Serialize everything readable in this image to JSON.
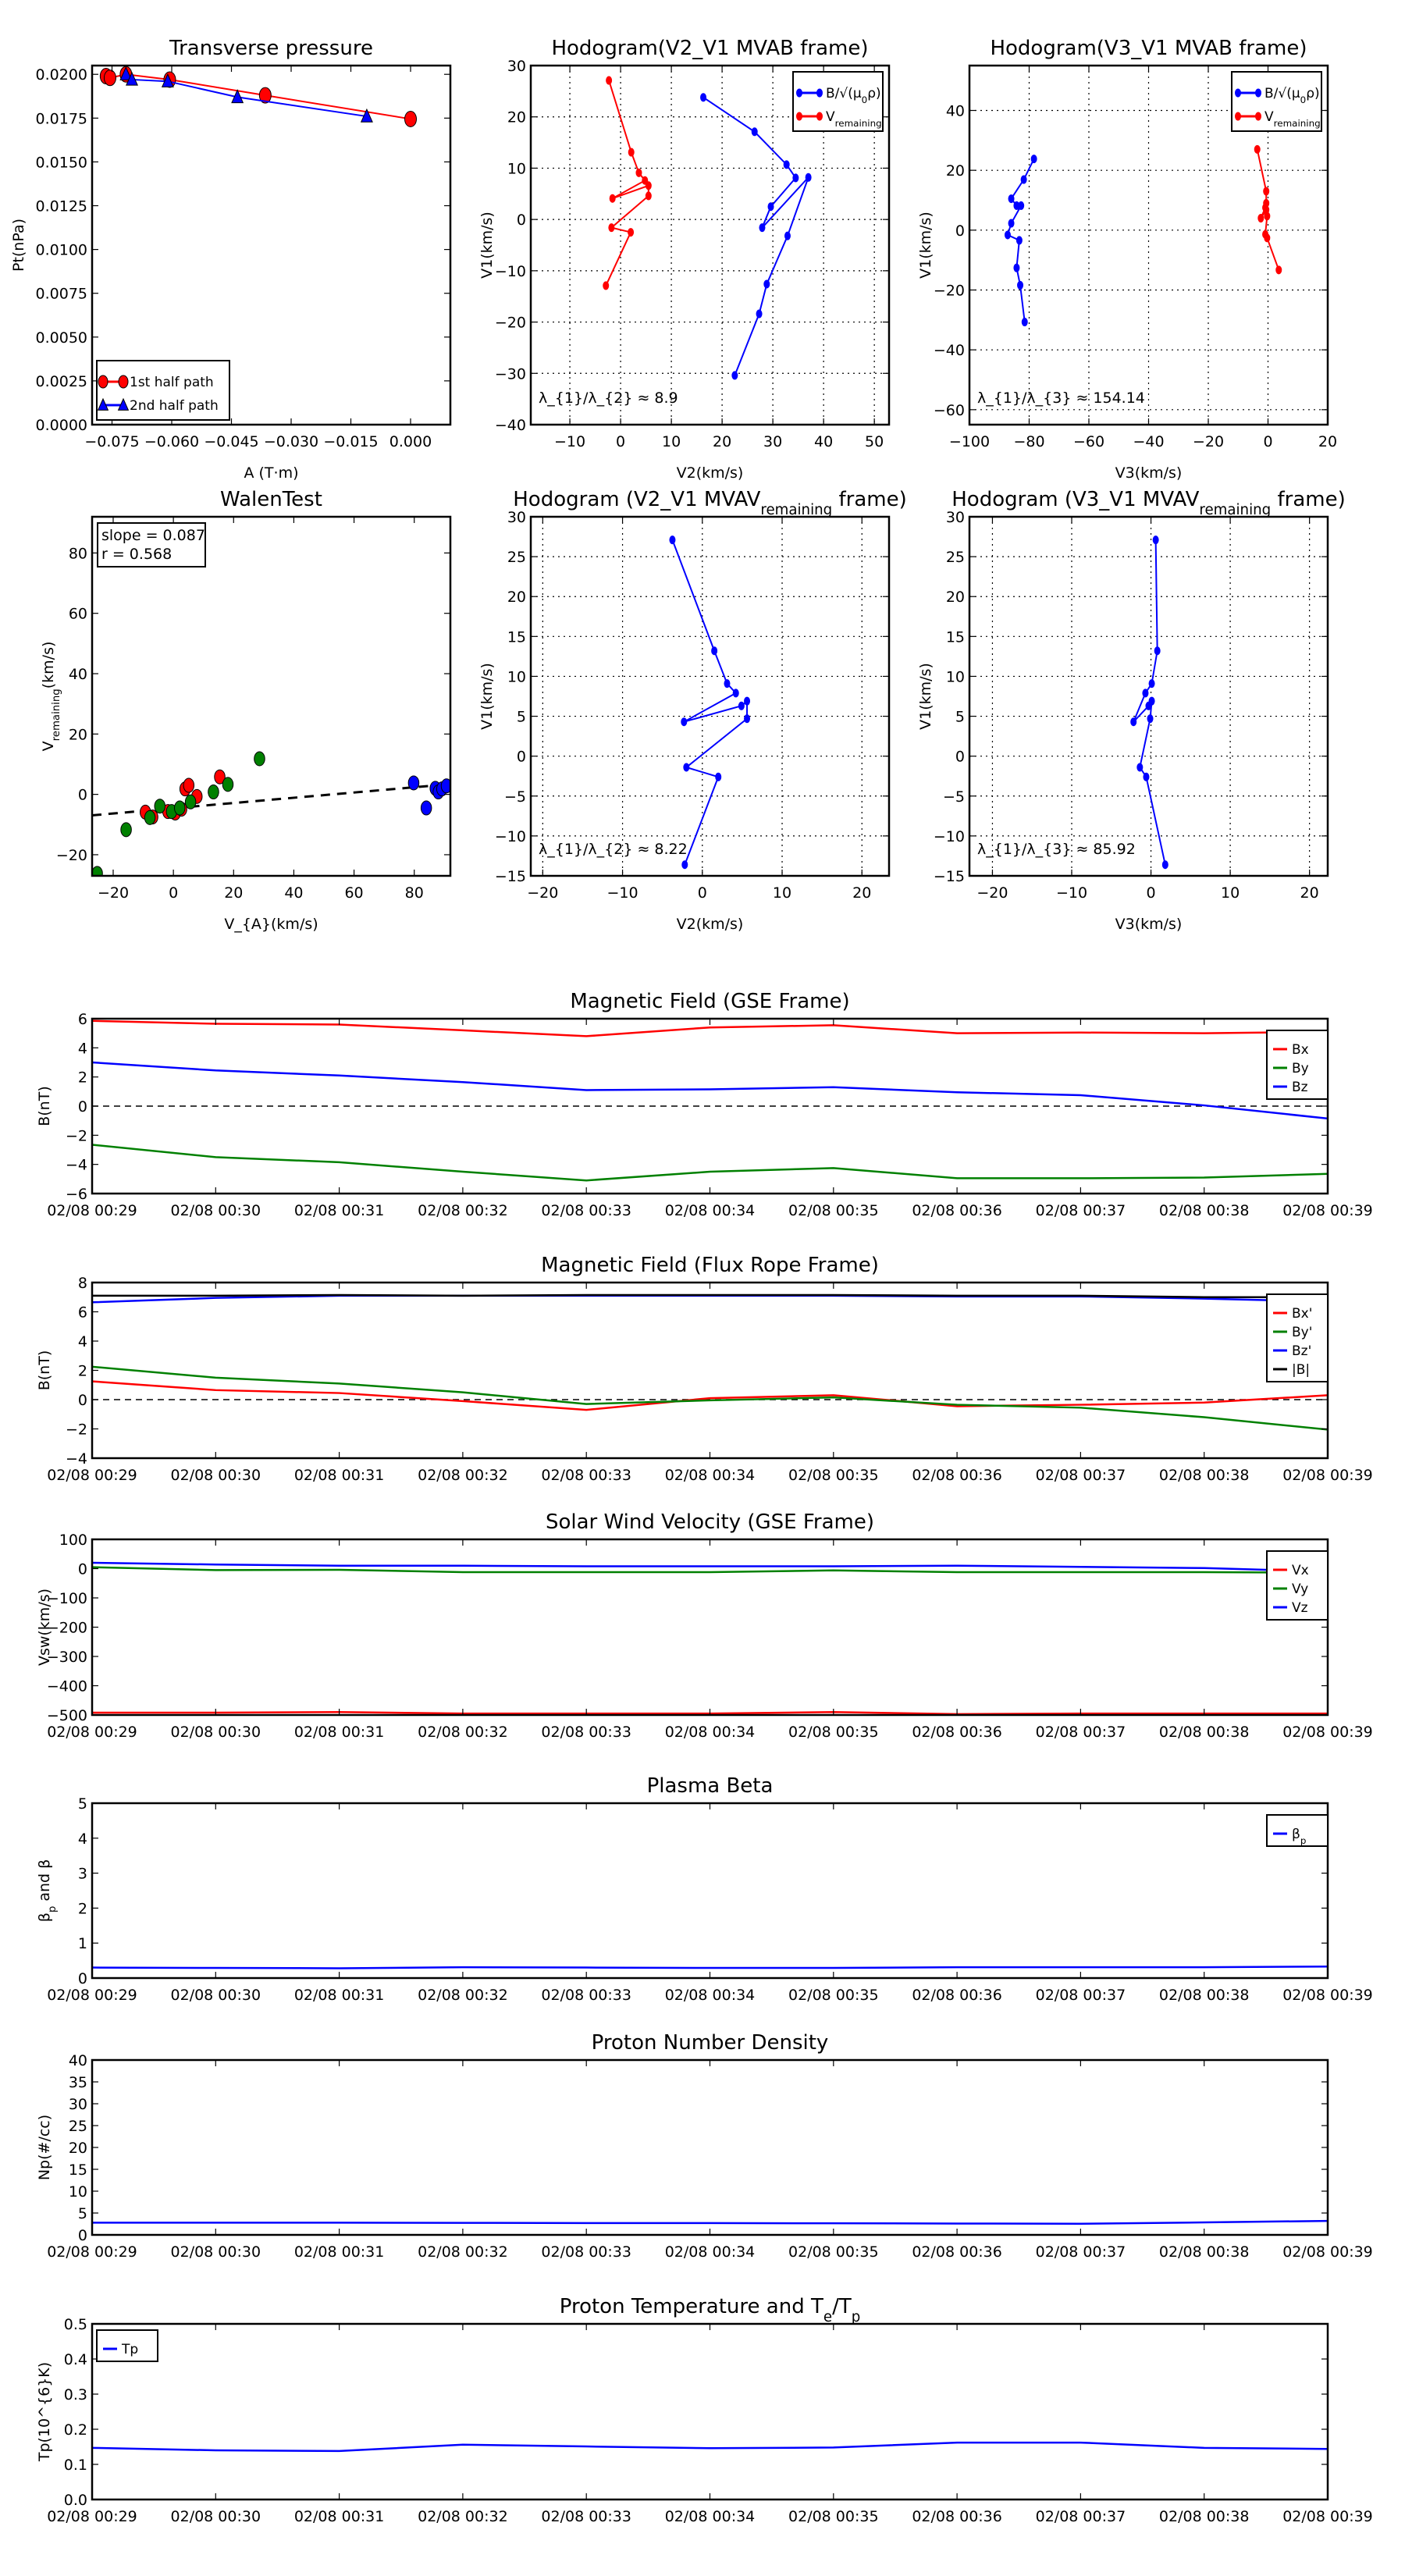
{
  "colors": {
    "red": "#ff0000",
    "green": "#008000",
    "blue": "#0000ff",
    "black": "#000000"
  },
  "chart_data": [
    {
      "id": "transverse-pressure",
      "type": "line",
      "title": "Transverse pressure",
      "xlabel": "A (T·m)",
      "ylabel": "Pt(nPa)",
      "xlim": [
        -0.08,
        0.01
      ],
      "ylim": [
        0,
        0.0205
      ],
      "grid": false,
      "xticks": [
        -0.075,
        -0.06,
        -0.045,
        -0.03,
        -0.015,
        0.0
      ],
      "xtick_labels": [
        "−0.075",
        "−0.060",
        "−0.045",
        "−0.030",
        "−0.015",
        "0.000"
      ],
      "yticks": [
        0,
        0.0025,
        0.005,
        0.0075,
        0.01,
        0.0125,
        0.015,
        0.0175,
        0.02
      ],
      "ytick_labels": [
        "0.0000",
        "0.0025",
        "0.0050",
        "0.0075",
        "0.0100",
        "0.0125",
        "0.0150",
        "0.0175",
        "0.0200"
      ],
      "legend": "bottom-left",
      "series": [
        {
          "name": "1st half path",
          "color": "#ff0000",
          "marker": "o",
          "x": [
            -0.0765,
            -0.0755,
            -0.0715,
            -0.0605,
            -0.0365,
            0.0
          ],
          "y": [
            0.0199,
            0.0198,
            0.02,
            0.0197,
            0.0188,
            0.01745
          ]
        },
        {
          "name": "2nd half path",
          "color": "#0000ff",
          "marker": "^",
          "x": [
            -0.0715,
            -0.07,
            -0.061,
            -0.0435,
            -0.011
          ],
          "y": [
            0.02,
            0.0197,
            0.0196,
            0.0187,
            0.0176
          ]
        }
      ]
    },
    {
      "id": "hodogram-v2-v1-mvab",
      "type": "line",
      "title": "Hodogram(V2_V1 MVAB frame)",
      "xlabel": "V2(km/s)",
      "ylabel": "V1(km/s)",
      "xlim": [
        -17.7,
        52.9
      ],
      "ylim": [
        -40,
        30
      ],
      "grid": true,
      "xticks": [
        -10,
        0,
        10,
        20,
        30,
        40,
        50
      ],
      "xtick_labels": [
        "−10",
        "0",
        "10",
        "20",
        "30",
        "40",
        "50"
      ],
      "yticks": [
        -40,
        -30,
        -20,
        -10,
        0,
        10,
        20,
        30
      ],
      "ytick_labels": [
        "−40",
        "−30",
        "−20",
        "−10",
        "0",
        "10",
        "20",
        "30"
      ],
      "legend": "top-right",
      "annotation": "λ_{1}/λ_{2} ≈ 8.9",
      "series": [
        {
          "name": "B/√(μ_{0}ρ)",
          "color": "#0000ff",
          "marker": ".",
          "x": [
            16.3,
            26.4,
            32.7,
            34.5,
            29.6,
            27.9,
            37.0,
            32.9,
            28.8,
            27.3,
            22.5
          ],
          "y": [
            23.8,
            17.1,
            10.7,
            8.1,
            2.5,
            -1.6,
            8.2,
            -3.2,
            -12.6,
            -18.4,
            -30.4
          ]
        },
        {
          "name": "V_{remaining}",
          "color": "#ff0000",
          "marker": ".",
          "x": [
            -2.3,
            2.1,
            3.6,
            4.8,
            -1.6,
            5.5,
            5.5,
            -1.8,
            2.0,
            -2.9
          ],
          "y": [
            27.1,
            13.1,
            9.1,
            7.6,
            4.1,
            6.6,
            4.6,
            -1.6,
            -2.5,
            -12.9
          ]
        }
      ]
    },
    {
      "id": "hodogram-v3-v1-mvab",
      "type": "line",
      "title": "Hodogram(V3_V1 MVAB frame)",
      "xlabel": "V3(km/s)",
      "ylabel": "V1(km/s)",
      "xlim": [
        -100,
        20
      ],
      "ylim": [
        -65,
        55
      ],
      "grid": true,
      "xticks": [
        -100,
        -80,
        -60,
        -40,
        -20,
        0,
        20
      ],
      "xtick_labels": [
        "−100",
        "−80",
        "−60",
        "−40",
        "−20",
        "0",
        "20"
      ],
      "yticks": [
        -60,
        -40,
        -20,
        0,
        20,
        40
      ],
      "ytick_labels": [
        "−60",
        "−40",
        "−20",
        "0",
        "20",
        "40"
      ],
      "legend": "top-right",
      "annotation": "λ_{1}/λ_{3} ≈ 154.14",
      "series": [
        {
          "name": "B/√(μ_{0}ρ)",
          "color": "#0000ff",
          "marker": ".",
          "x": [
            -78.4,
            -81.8,
            -86.0,
            -84.2,
            -82.7,
            -86.0,
            -87.2,
            -83.3,
            -84.2,
            -83.0,
            -81.5
          ],
          "y": [
            23.8,
            16.9,
            10.5,
            8.2,
            8.2,
            2.3,
            -1.6,
            -3.4,
            -12.6,
            -18.4,
            -30.7
          ]
        },
        {
          "name": "V_{remaining}",
          "color": "#ff0000",
          "marker": ".",
          "x": [
            -3.6,
            -0.6,
            -0.6,
            -0.9,
            -2.4,
            -0.6,
            -0.3,
            -0.9,
            -0.3,
            3.6
          ],
          "y": [
            27.0,
            13.0,
            9.0,
            7.5,
            4.0,
            6.8,
            4.7,
            -1.4,
            -2.6,
            -13.3
          ]
        }
      ]
    },
    {
      "id": "walen-test",
      "type": "scatter",
      "title": "WalenTest",
      "xlabel": "V_{A}(km/s)",
      "ylabel": "V_{remaining}(km/s)",
      "xlim": [
        -27,
        92
      ],
      "ylim": [
        -27,
        92
      ],
      "grid": false,
      "xticks": [
        -20,
        0,
        20,
        40,
        60,
        80
      ],
      "xtick_labels": [
        "−20",
        "0",
        "20",
        "40",
        "60",
        "80"
      ],
      "yticks": [
        -20,
        0,
        20,
        40,
        60,
        80
      ],
      "ytick_labels": [
        "−20",
        "0",
        "20",
        "40",
        "60",
        "80"
      ],
      "fit": {
        "slope": 0.087,
        "intercept": -4.6,
        "r": 0.568
      },
      "annotation_lines": [
        "slope = 0.087",
        "r = 0.568"
      ],
      "series": [
        {
          "name": "red",
          "color": "#ff0000",
          "marker": "o",
          "line": false,
          "x": [
            -9.3,
            -6.9,
            -1.8,
            0.6,
            2.7,
            3.9,
            5.1,
            7.8,
            15.4
          ],
          "y": [
            -5.9,
            -7.5,
            -5.7,
            -6.2,
            -4.9,
            1.8,
            3.0,
            -0.7,
            5.8
          ]
        },
        {
          "name": "green",
          "color": "#008000",
          "marker": "o",
          "line": false,
          "x": [
            -25.3,
            -15.7,
            -7.8,
            -4.5,
            -0.6,
            2.1,
            5.7,
            13.3,
            18.1,
            28.6
          ],
          "y": [
            -26.2,
            -11.7,
            -7.7,
            -3.9,
            -5.7,
            -4.5,
            -2.5,
            0.8,
            3.3,
            11.8
          ]
        },
        {
          "name": "blue",
          "color": "#0000ff",
          "marker": "o",
          "line": false,
          "x": [
            79.8,
            84.0,
            87.0,
            88.0,
            89.2,
            90.7
          ],
          "y": [
            3.8,
            -4.5,
            2.0,
            0.8,
            1.8,
            2.8
          ]
        }
      ]
    },
    {
      "id": "hodogram-v2-v1-mvav",
      "type": "line",
      "title": "Hodogram (V2_V1 MVAV_{remaining} frame)",
      "xlabel": "V2(km/s)",
      "ylabel": "V1(km/s)",
      "xlim": [
        -21.5,
        23.4
      ],
      "ylim": [
        -15,
        30
      ],
      "grid": true,
      "xticks": [
        -20,
        -10,
        0,
        10,
        20
      ],
      "xtick_labels": [
        "−20",
        "−10",
        "0",
        "10",
        "20"
      ],
      "yticks": [
        -15,
        -10,
        -5,
        0,
        5,
        10,
        15,
        20,
        25,
        30
      ],
      "ytick_labels": [
        "−15",
        "−10",
        "−5",
        "0",
        "5",
        "10",
        "15",
        "20",
        "25",
        "30"
      ],
      "annotation": "λ_{1}/λ_{2} ≈ 8.22",
      "series": [
        {
          "name": "V",
          "color": "#0000ff",
          "marker": ".",
          "x": [
            -3.75,
            1.5,
            3.1,
            4.2,
            -2.3,
            4.9,
            5.6,
            5.6,
            -2.0,
            2.0,
            -2.2
          ],
          "y": [
            27.1,
            13.2,
            9.1,
            7.9,
            4.3,
            6.3,
            6.9,
            4.7,
            -1.4,
            -2.6,
            -13.6
          ]
        }
      ]
    },
    {
      "id": "hodogram-v3-v1-mvav",
      "type": "line",
      "title": "Hodogram (V3_V1 MVAV_{remaining} frame)",
      "xlabel": "V3(km/s)",
      "ylabel": "V1(km/s)",
      "xlim": [
        -22.9,
        22.3
      ],
      "ylim": [
        -15,
        30
      ],
      "grid": true,
      "xticks": [
        -20,
        -10,
        0,
        10,
        20
      ],
      "xtick_labels": [
        "−20",
        "−10",
        "0",
        "10",
        "20"
      ],
      "yticks": [
        -15,
        -10,
        -5,
        0,
        5,
        10,
        15,
        20,
        25,
        30
      ],
      "ytick_labels": [
        "−15",
        "−10",
        "−5",
        "0",
        "5",
        "10",
        "15",
        "20",
        "25",
        "30"
      ],
      "annotation": "λ_{1}/λ_{3} ≈ 85.92",
      "series": [
        {
          "name": "V",
          "color": "#0000ff",
          "marker": ".",
          "x": [
            0.6,
            0.8,
            0.1,
            -0.7,
            -2.2,
            -0.3,
            0.1,
            -0.1,
            -1.4,
            -0.6,
            1.8
          ],
          "y": [
            27.1,
            13.2,
            9.1,
            7.9,
            4.3,
            6.3,
            6.9,
            4.7,
            -1.4,
            -2.6,
            -13.6
          ]
        }
      ]
    },
    {
      "id": "magnetic-field-gse",
      "type": "line",
      "title": "Magnetic Field (GSE Frame)",
      "xlabel": "",
      "ylabel": "B(nT)",
      "xlim": [
        0,
        10
      ],
      "ylim": [
        -6,
        6
      ],
      "hline": 0,
      "yticks": [
        -6,
        -4,
        -2,
        0,
        2,
        4,
        6
      ],
      "ytick_labels": [
        "−6",
        "−4",
        "−2",
        "0",
        "2",
        "4",
        "6"
      ],
      "legend": "top-right",
      "series": [
        {
          "name": "Bx",
          "color": "#ff0000",
          "y": [
            5.85,
            5.65,
            5.6,
            5.2,
            4.8,
            5.4,
            5.55,
            5.0,
            5.05,
            5.0,
            5.1
          ]
        },
        {
          "name": "By",
          "color": "#008000",
          "y": [
            -2.65,
            -3.5,
            -3.85,
            -4.5,
            -5.1,
            -4.5,
            -4.25,
            -4.95,
            -4.95,
            -4.9,
            -4.65
          ]
        },
        {
          "name": "Bz",
          "color": "#0000ff",
          "y": [
            3.0,
            2.45,
            2.1,
            1.65,
            1.1,
            1.15,
            1.3,
            0.95,
            0.75,
            0.05,
            -0.85
          ]
        }
      ]
    },
    {
      "id": "magnetic-field-flux-rope",
      "type": "line",
      "title": "Magnetic Field (Flux Rope Frame)",
      "xlabel": "",
      "ylabel": "B(nT)",
      "xlim": [
        0,
        10
      ],
      "ylim": [
        -4,
        8
      ],
      "hline": 0,
      "yticks": [
        -4,
        -2,
        0,
        2,
        4,
        6,
        8
      ],
      "ytick_labels": [
        "−4",
        "−2",
        "0",
        "2",
        "4",
        "6",
        "8"
      ],
      "legend": "top-right",
      "series": [
        {
          "name": "Bx'",
          "color": "#ff0000",
          "y": [
            1.25,
            0.65,
            0.45,
            -0.1,
            -0.7,
            0.1,
            0.3,
            -0.45,
            -0.35,
            -0.2,
            0.3
          ]
        },
        {
          "name": "By'",
          "color": "#008000",
          "y": [
            2.25,
            1.5,
            1.1,
            0.5,
            -0.3,
            -0.05,
            0.15,
            -0.35,
            -0.55,
            -1.2,
            -2.05
          ]
        },
        {
          "name": "Bz'",
          "color": "#0000ff",
          "y": [
            6.65,
            6.95,
            7.1,
            7.1,
            7.1,
            7.1,
            7.1,
            7.05,
            7.05,
            6.9,
            6.7
          ]
        },
        {
          "name": "|B|",
          "color": "#000000",
          "y": [
            7.1,
            7.1,
            7.15,
            7.1,
            7.15,
            7.15,
            7.15,
            7.1,
            7.1,
            7.0,
            7.0
          ]
        }
      ]
    },
    {
      "id": "solar-wind-velocity",
      "type": "line",
      "title": "Solar Wind Velocity (GSE Frame)",
      "xlabel": "",
      "ylabel": "Vsw(km/s)",
      "xlim": [
        0,
        10
      ],
      "ylim": [
        -500,
        100
      ],
      "yticks": [
        -500,
        -400,
        -300,
        -200,
        -100,
        0,
        100
      ],
      "ytick_labels": [
        "−500",
        "−400",
        "−300",
        "−200",
        "−100",
        "0",
        "100"
      ],
      "legend": "top-right",
      "series": [
        {
          "name": "Vx",
          "color": "#ff0000",
          "y": [
            -492,
            -492,
            -490,
            -495,
            -495,
            -495,
            -490,
            -497,
            -495,
            -495,
            -495
          ]
        },
        {
          "name": "Vy",
          "color": "#008000",
          "y": [
            5,
            -5,
            -4,
            -12,
            -12,
            -12,
            -6,
            -12,
            -12,
            -12,
            -14
          ]
        },
        {
          "name": "Vz",
          "color": "#0000ff",
          "y": [
            20,
            14,
            10,
            10,
            8,
            8,
            8,
            10,
            6,
            2,
            -10
          ]
        }
      ]
    },
    {
      "id": "plasma-beta",
      "type": "line",
      "title": "Plasma Beta",
      "xlabel": "",
      "ylabel": "β_{p} and β",
      "xlim": [
        0,
        10
      ],
      "ylim": [
        0,
        5
      ],
      "yticks": [
        0,
        1,
        2,
        3,
        4,
        5
      ],
      "ytick_labels": [
        "0",
        "1",
        "2",
        "3",
        "4",
        "5"
      ],
      "legend": "top-right",
      "series": [
        {
          "name": "β_{p}",
          "color": "#0000ff",
          "y": [
            0.3,
            0.29,
            0.28,
            0.31,
            0.3,
            0.29,
            0.29,
            0.31,
            0.31,
            0.31,
            0.33
          ]
        }
      ]
    },
    {
      "id": "proton-number-density",
      "type": "line",
      "title": "Proton Number Density",
      "xlabel": "",
      "ylabel": "Np(#/cc)",
      "xlim": [
        0,
        10
      ],
      "ylim": [
        0,
        40
      ],
      "yticks": [
        0,
        5,
        10,
        15,
        20,
        25,
        30,
        35,
        40
      ],
      "ytick_labels": [
        "0",
        "5",
        "10",
        "15",
        "20",
        "25",
        "30",
        "35",
        "40"
      ],
      "series": [
        {
          "name": "Np",
          "color": "#0000ff",
          "y": [
            2.8,
            2.8,
            2.8,
            2.75,
            2.7,
            2.7,
            2.65,
            2.6,
            2.55,
            2.85,
            3.2
          ]
        }
      ]
    },
    {
      "id": "proton-temperature",
      "type": "line",
      "title": "Proton Temperature and T_{e}/T_{p}",
      "xlabel": "",
      "ylabel": "Tp(10^{6}K)",
      "xlim": [
        0,
        10
      ],
      "ylim": [
        0,
        0.5
      ],
      "yticks": [
        0,
        0.1,
        0.2,
        0.3,
        0.4,
        0.5
      ],
      "ytick_labels": [
        "0.0",
        "0.1",
        "0.2",
        "0.3",
        "0.4",
        "0.5"
      ],
      "legend": "top-left",
      "series": [
        {
          "name": "Tp",
          "color": "#0000ff",
          "y": [
            0.147,
            0.14,
            0.138,
            0.156,
            0.151,
            0.146,
            0.148,
            0.162,
            0.162,
            0.147,
            0.144
          ]
        }
      ]
    }
  ],
  "time_labels": [
    "02/08 00:29",
    "02/08 00:30",
    "02/08 00:31",
    "02/08 00:32",
    "02/08 00:33",
    "02/08 00:34",
    "02/08 00:35",
    "02/08 00:36",
    "02/08 00:37",
    "02/08 00:38",
    "02/08 00:39"
  ]
}
